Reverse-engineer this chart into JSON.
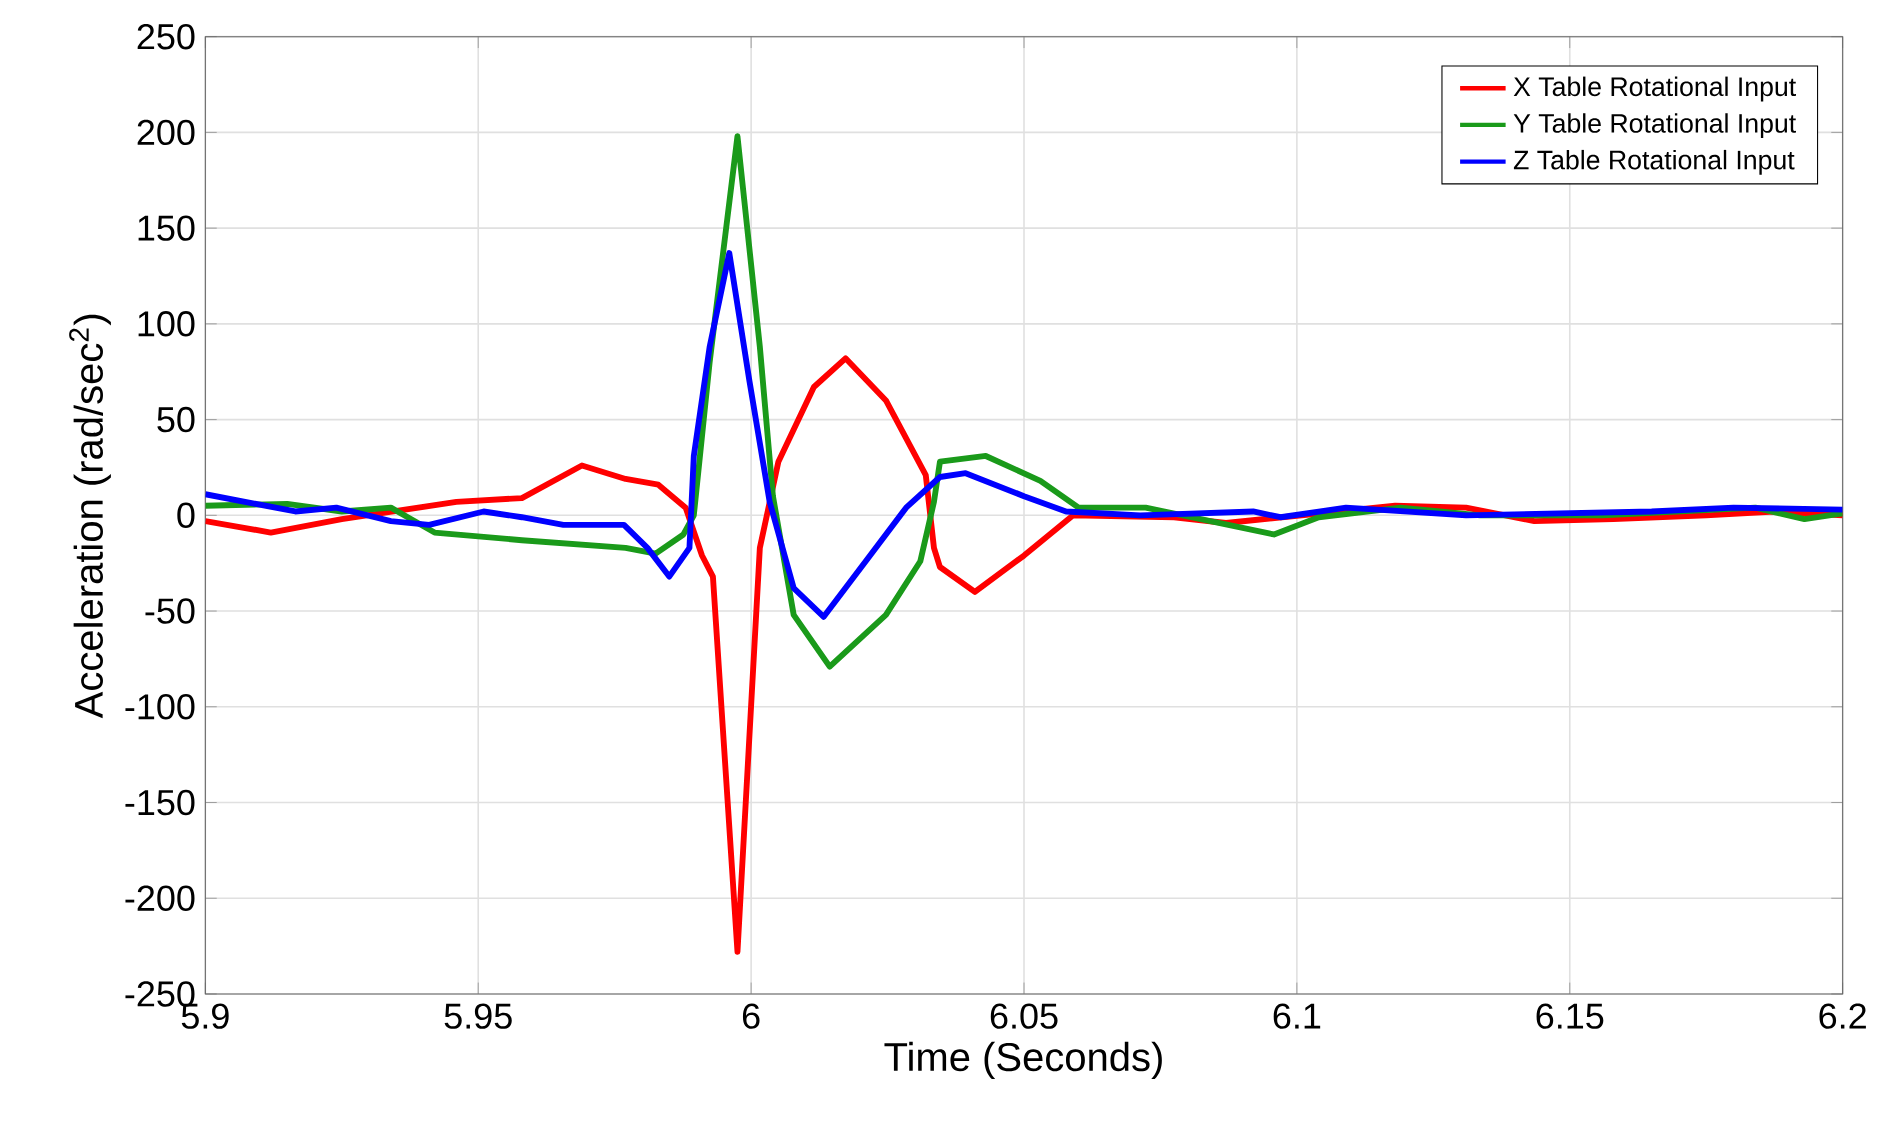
{
  "chart_data": {
    "type": "line",
    "xlabel": "Time (Seconds)",
    "ylabel": "Acceleration (rad/sec$^{2}$)",
    "xlim": [
      5.9,
      6.2
    ],
    "ylim": [
      -250,
      250
    ],
    "xticks": [
      5.9,
      5.95,
      6,
      6.05,
      6.1,
      6.15,
      6.2
    ],
    "yticks": [
      -250,
      -200,
      -150,
      -100,
      -50,
      0,
      50,
      100,
      150,
      200,
      250
    ],
    "grid": true,
    "legend": "top right",
    "series": [
      {
        "name": "X Table Rotational Input",
        "color": "#ff0000",
        "x": [
          5.9,
          5.912,
          5.925,
          5.946,
          5.958,
          5.969,
          5.977,
          5.983,
          5.988,
          5.991,
          5.993,
          5.9975,
          6.0016,
          6.005,
          6.0115,
          6.0173,
          6.0247,
          6.032,
          6.0335,
          6.0346,
          6.041,
          6.05,
          6.059,
          6.0775,
          6.087,
          6.118,
          6.131,
          6.1435,
          6.158,
          6.175,
          6.1875,
          6.2
        ],
        "values": [
          -3,
          -9,
          -2,
          7,
          9,
          26,
          19,
          16,
          4,
          -21,
          -32,
          -228,
          -17,
          28,
          67,
          82,
          60,
          21,
          -17,
          -27,
          -40,
          -21,
          0,
          -1,
          -4,
          5,
          4,
          -3,
          -2,
          0,
          2,
          0
        ]
      },
      {
        "name": "Y Table Rotational Input",
        "color": "#1a9a1a",
        "x": [
          5.9,
          5.915,
          5.925,
          5.934,
          5.942,
          5.958,
          5.977,
          5.9825,
          5.9876,
          5.9895,
          5.9924,
          5.9975,
          6.0016,
          6.004,
          6.0078,
          6.0144,
          6.0247,
          6.031,
          6.0335,
          6.0346,
          6.043,
          6.053,
          6.06,
          6.0723,
          6.0958,
          6.104,
          6.119,
          6.1336,
          6.156,
          6.184,
          6.193,
          6.2
        ],
        "values": [
          5,
          6,
          2,
          4,
          -9,
          -13,
          -17,
          -20,
          -10,
          0,
          80,
          198,
          88,
          10,
          -52,
          -79,
          -52,
          -24,
          7,
          28,
          31,
          18,
          4,
          4,
          -10,
          -1,
          4,
          0,
          0,
          4,
          -2,
          1
        ]
      },
      {
        "name": "Z Table Rotational Input",
        "color": "#0000ff",
        "x": [
          5.9,
          5.9165,
          5.924,
          5.934,
          5.941,
          5.951,
          5.958,
          5.9656,
          5.9767,
          5.981,
          5.985,
          5.9887,
          5.9895,
          5.9924,
          5.996,
          5.9997,
          6.0034,
          6.0078,
          6.0133,
          6.021,
          6.0284,
          6.0346,
          6.0393,
          6.05,
          6.0577,
          6.0713,
          6.092,
          6.097,
          6.109,
          6.131,
          6.165,
          6.18,
          6.2
        ],
        "values": [
          11,
          2,
          4,
          -3,
          -5,
          2,
          -1,
          -5,
          -5,
          -17,
          -32,
          -17,
          31,
          88,
          137,
          70,
          7,
          -38,
          -53,
          -24,
          4,
          20,
          22,
          10,
          2,
          0,
          2,
          -1,
          4,
          0,
          2,
          4,
          3
        ]
      }
    ]
  }
}
